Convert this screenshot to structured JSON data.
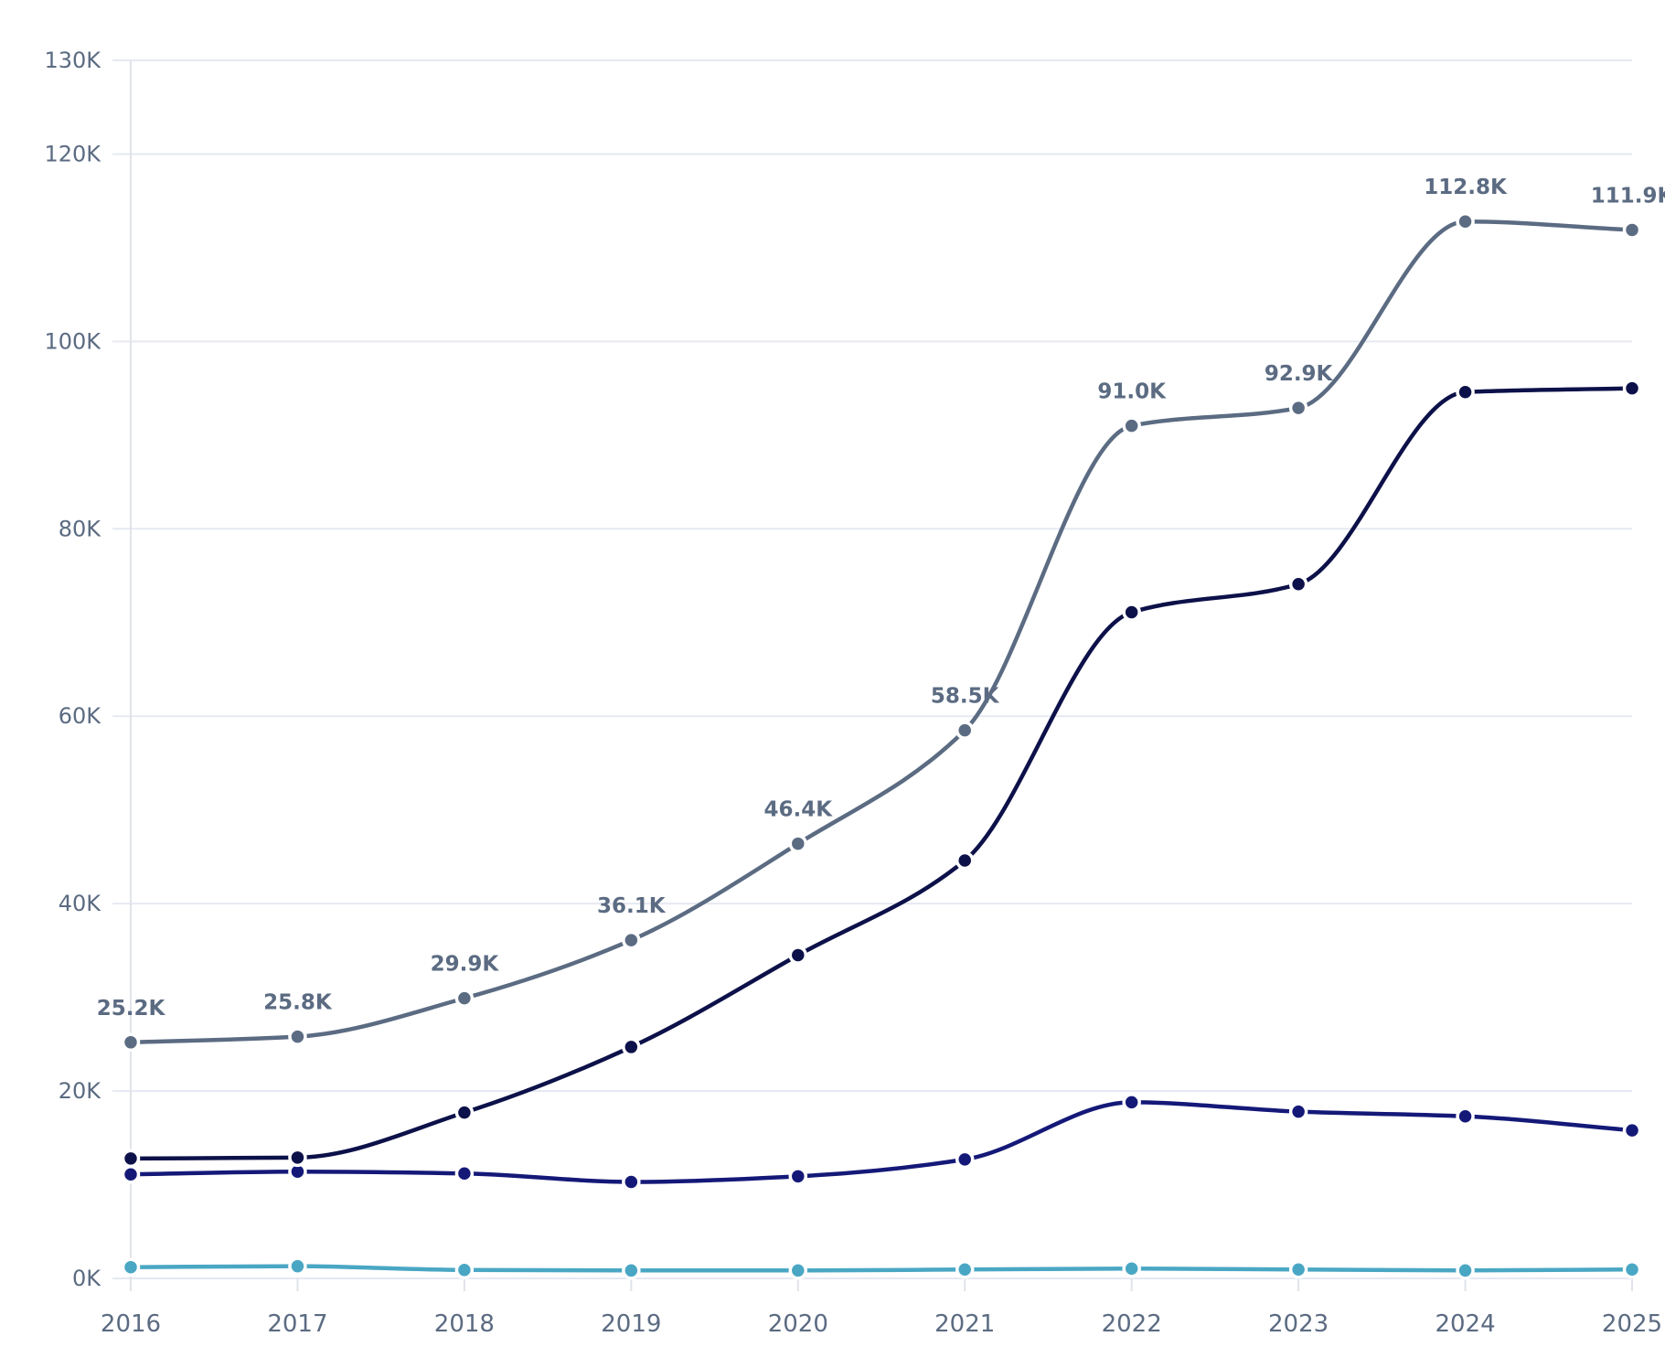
{
  "chart_data": {
    "type": "line",
    "x": [
      "2016",
      "2017",
      "2018",
      "2019",
      "2020",
      "2021",
      "2022",
      "2023",
      "2024",
      "2025"
    ],
    "ylim": [
      0,
      130000
    ],
    "y_ticks": [
      0,
      20000,
      40000,
      60000,
      80000,
      100000,
      120000,
      130000
    ],
    "y_tick_labels": [
      "0K",
      "20K",
      "40K",
      "60K",
      "80K",
      "100K",
      "120K",
      "130K"
    ],
    "grid": true,
    "smooth": true,
    "series": [
      {
        "color": "#5b6b82",
        "values": [
          25200,
          25800,
          29900,
          36100,
          46400,
          58500,
          91000,
          92900,
          112800,
          111900
        ],
        "labels": [
          "25.2K",
          "25.8K",
          "29.9K",
          "36.1K",
          "46.4K",
          "58.5K",
          "91.0K",
          "92.9K",
          "112.8K",
          "111.9K"
        ]
      },
      {
        "color": "#0d1149",
        "values": [
          12800,
          12900,
          17700,
          24700,
          34500,
          44600,
          71100,
          74100,
          94600,
          95000
        ]
      },
      {
        "color": "#141978",
        "values": [
          11100,
          11400,
          11200,
          10300,
          10900,
          12700,
          18800,
          17800,
          17300,
          15800
        ]
      },
      {
        "color": "#4aa7c4",
        "values": [
          1200,
          1300,
          900,
          850,
          850,
          950,
          1050,
          950,
          850,
          950
        ]
      }
    ]
  }
}
